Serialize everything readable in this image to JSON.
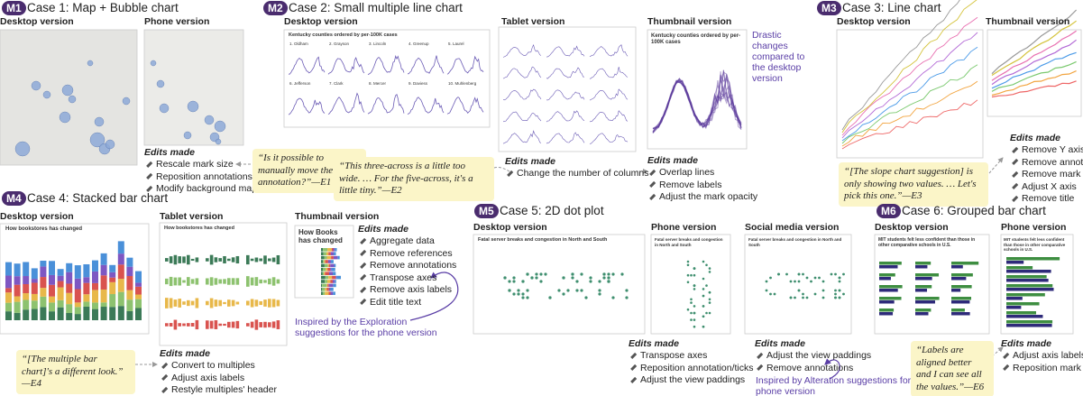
{
  "m1": {
    "badge": "M1",
    "title": "Case 1: Map + Bubble chart",
    "desktop": "Desktop version",
    "phone": "Phone version",
    "edits_heading": "Edits made",
    "edits": [
      "Rescale mark size",
      "Reposition annotations",
      "Modify background map"
    ],
    "quote": "“Is it possible to manually move the annotation?”—E1"
  },
  "m2": {
    "badge": "M2",
    "title": "Case 2: Small multiple line chart",
    "desktop": "Desktop version",
    "desktop_chart_title": "Kentucky counties ordered by per-100K cases",
    "panels": [
      "1. Oldham",
      "2. Grayson",
      "3. Lincoln",
      "4. Greenup",
      "5. Laurel",
      "6. Jefferson",
      "7. Clark",
      "8. Mercer",
      "9. Daviess",
      "10. Muhlenberg"
    ],
    "tablet": "Tablet version",
    "tablet_edits_heading": "Edits made",
    "tablet_edits": [
      "Change the number of columns"
    ],
    "quote": "“This three-across is a little too wide. … For the five-across, it's a little tiny.”—E2",
    "thumbnail": "Thumbnail version",
    "thumbnail_chart_title": "Kentucky counties ordered by per-100K cases",
    "note": "Drastic changes compared to the desktop version",
    "thumbnail_edits_heading": "Edits made",
    "thumbnail_edits": [
      "Overlap lines",
      "Remove labels",
      "Adjust the mark opacity"
    ]
  },
  "m3": {
    "badge": "M3",
    "title": "Case 3: Line chart",
    "desktop": "Desktop version",
    "thumbnail": "Thumbnail version",
    "edits_heading": "Edits made",
    "edits": [
      "Remove Y axis",
      "Remove annotation",
      "Remove mark labels",
      "Adjust X axis",
      "Remove title"
    ],
    "quote": "“[The slope chart suggestion] is only showing two values. … Let's pick this one.”—E3"
  },
  "m4": {
    "badge": "M4",
    "title": "Case 4: Stacked bar chart",
    "desktop": "Desktop version",
    "desktop_chart_title": "How bookstores has changed",
    "tablet": "Tablet version",
    "tablet_chart_title": "How bookstores has changed",
    "thumbnail": "Thumbnail version",
    "thumbnail_chart_title": "How Books has changed",
    "thumbnail_edits_heading": "Edits made",
    "thumbnail_edits": [
      "Aggregate data",
      "Remove references",
      "Remove annotations",
      "Transpose axes",
      "Remove axis labels",
      "Edit title text"
    ],
    "note": "Inspired by the Exploration suggestions for the phone version",
    "quote": "“[The multiple bar chart]'s a different look.” —E4",
    "tablet_edits_heading": "Edits made",
    "tablet_edits": [
      "Convert to multiples",
      "Adjust axis labels",
      "Restyle multiples' header"
    ]
  },
  "m5": {
    "badge": "M5",
    "title": "Case 5: 2D dot plot",
    "desktop": "Desktop version",
    "desktop_chart_title": "Fatal server breaks and congestion in North and South",
    "phone": "Phone version",
    "phone_chart_title": "Fatal server breaks and congestion in North and South",
    "social": "Social media version",
    "social_chart_title": "Fatal server breaks and congestion in North and South",
    "phone_edits_heading": "Edits made",
    "phone_edits": [
      "Transpose axes",
      "Reposition annotation/ticks",
      "Adjust the view paddings"
    ],
    "social_edits_heading": "Edits made",
    "social_edits": [
      "Adjust the view paddings",
      "Remove annotations"
    ],
    "note": "Inspired by Alteration suggestions for the phone version"
  },
  "m6": {
    "badge": "M6",
    "title": "Case 6: Grouped bar chart",
    "desktop": "Desktop version",
    "desktop_chart_title": "MIT students felt less confident than those in other comparative schools in U.S.",
    "phone": "Phone version",
    "phone_chart_title": "MIT students felt less confident than those in other comparative schools in U.S.",
    "quote": "“Labels are aligned better and I can see all the values.”—E6",
    "edits_heading": "Edits made",
    "edits": [
      "Adjust axis labels",
      "Reposition mark labels"
    ]
  }
}
